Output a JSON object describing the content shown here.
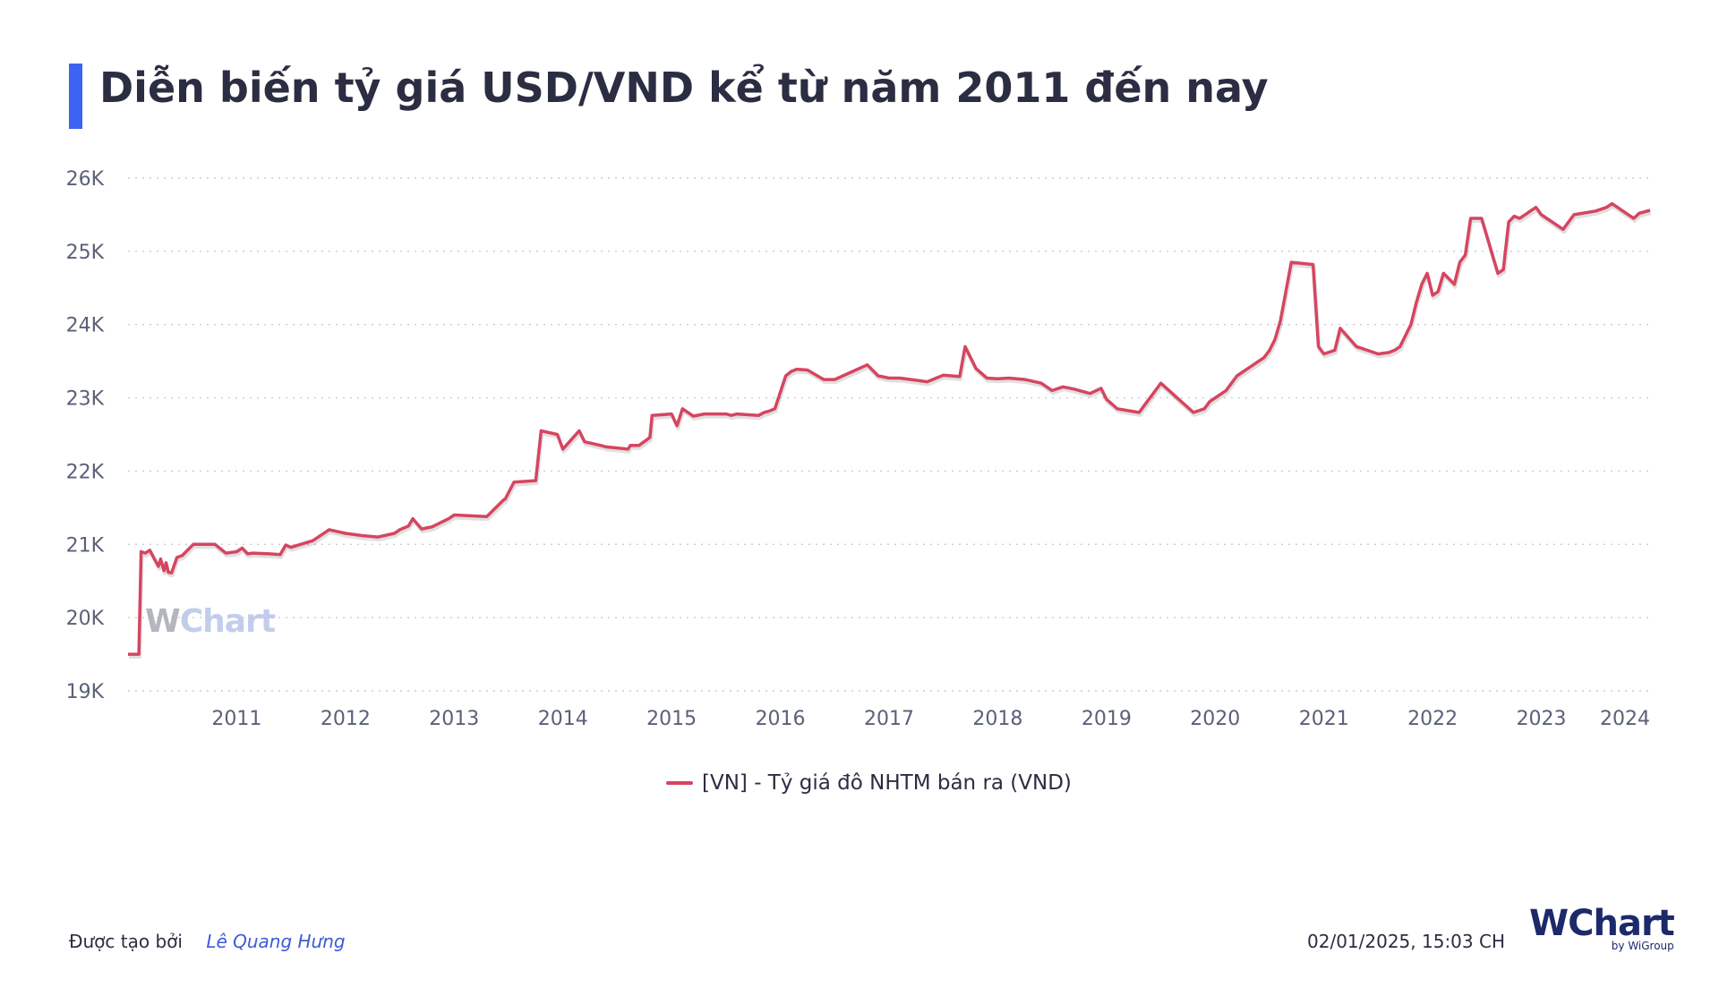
{
  "header": {
    "title": "Diễn biến tỷ giá USD/VND kể từ năm 2011 đến nay",
    "accent_color": "#3d63f2"
  },
  "chart_data": {
    "type": "line",
    "title": "Diễn biến tỷ giá USD/VND kể từ năm 2011 đến nay",
    "xlabel": "",
    "ylabel": "",
    "ylim": [
      19000,
      26000
    ],
    "xlim": [
      2010.0,
      2024.0
    ],
    "y_ticks": [
      "19K",
      "20K",
      "21K",
      "22K",
      "23K",
      "24K",
      "25K",
      "26K"
    ],
    "y_tick_values": [
      19000,
      20000,
      21000,
      22000,
      23000,
      24000,
      25000,
      26000
    ],
    "x_ticks": [
      "2011",
      "2012",
      "2013",
      "2014",
      "2015",
      "2016",
      "2017",
      "2018",
      "2019",
      "2020",
      "2021",
      "2022",
      "2023",
      "2024"
    ],
    "x_tick_values": [
      2011.0,
      2012.0,
      2013.0,
      2014.0,
      2015.0,
      2016.0,
      2017.0,
      2018.0,
      2019.0,
      2020.0,
      2021.0,
      2022.0,
      2023.0,
      2024.0
    ],
    "grid": true,
    "legend_position": "bottom",
    "series": [
      {
        "name": "[VN] - Tỷ giá đô NHTM bán ra (VND)",
        "color": "#d64560",
        "x": [
          2010.0,
          2010.1,
          2010.12,
          2010.16,
          2010.2,
          2010.28,
          2010.3,
          2010.33,
          2010.35,
          2010.37,
          2010.4,
          2010.45,
          2010.5,
          2010.6,
          2010.8,
          2010.9,
          2011.0,
          2011.05,
          2011.1,
          2011.15,
          2011.3,
          2011.4,
          2011.45,
          2011.5,
          2011.7,
          2011.85,
          2012.0,
          2012.1,
          2012.15,
          2012.3,
          2012.45,
          2012.5,
          2012.58,
          2012.62,
          2012.7,
          2012.8,
          2012.95,
          2013.0,
          2013.3,
          2013.45,
          2013.47,
          2013.55,
          2013.75,
          2013.8,
          2013.95,
          2014.0,
          2014.15,
          2014.2,
          2014.35,
          2014.4,
          2014.6,
          2014.62,
          2014.7,
          2014.8,
          2014.82,
          2015.0,
          2015.05,
          2015.1,
          2015.2,
          2015.3,
          2015.5,
          2015.55,
          2015.6,
          2015.8,
          2015.85,
          2015.9,
          2015.95,
          2016.05,
          2016.1,
          2016.15,
          2016.25,
          2016.4,
          2016.5,
          2016.8,
          2016.9,
          2017.0,
          2017.1,
          2017.2,
          2017.25,
          2017.35,
          2017.5,
          2017.65,
          2017.7,
          2017.8,
          2017.9,
          2018.0,
          2018.1,
          2018.25,
          2018.4,
          2018.5,
          2018.6,
          2018.7,
          2018.75,
          2018.85,
          2018.95,
          2019.0,
          2019.1,
          2019.3,
          2019.5,
          2019.8,
          2019.9,
          2019.95,
          2020.0,
          2020.1,
          2020.2,
          2020.4,
          2020.45,
          2020.5,
          2020.55,
          2020.6,
          2020.7,
          2020.9,
          2020.95,
          2021.0,
          2021.1,
          2021.15,
          2021.3,
          2021.5,
          2021.6,
          2021.65,
          2021.7,
          2021.75,
          2021.8,
          2021.85,
          2021.9,
          2021.95,
          2022.0,
          2022.05,
          2022.1,
          2022.2,
          2022.25,
          2022.3,
          2022.35,
          2022.4,
          2022.45,
          2022.5,
          2022.55,
          2022.6,
          2022.65,
          2022.7,
          2022.75,
          2022.8,
          2022.85,
          2022.9,
          2022.95,
          2023.0,
          2023.05,
          2023.1,
          2023.15,
          2023.2,
          2023.25,
          2023.3,
          2023.5,
          2023.6,
          2023.65,
          2023.7,
          2023.75,
          2023.8,
          2023.85,
          2023.9,
          2024.0
        ],
        "y": [
          19500,
          19500,
          20900,
          20880,
          20920,
          20700,
          20800,
          20640,
          20750,
          20620,
          20610,
          20820,
          20850,
          21000,
          21000,
          20880,
          20900,
          20950,
          20870,
          20880,
          20870,
          20860,
          20990,
          20960,
          21050,
          21200,
          21150,
          21130,
          21120,
          21100,
          21150,
          21200,
          21250,
          21350,
          21210,
          21240,
          21350,
          21400,
          21380,
          21600,
          21620,
          21850,
          21870,
          22550,
          22500,
          22300,
          22550,
          22400,
          22350,
          22330,
          22300,
          22350,
          22350,
          22460,
          22760,
          22780,
          22620,
          22850,
          22750,
          22780,
          22780,
          22760,
          22780,
          22760,
          22800,
          22820,
          22850,
          23300,
          23360,
          23390,
          23380,
          23250,
          23250,
          23450,
          23300,
          23270,
          23270,
          23250,
          23240,
          23220,
          23310,
          23290,
          23700,
          23400,
          23270,
          23260,
          23270,
          23250,
          23200,
          23100,
          23150,
          23120,
          23100,
          23060,
          23130,
          22980,
          22850,
          22800,
          23200,
          22800,
          22850,
          22950,
          23000,
          23100,
          23300,
          23500,
          23550,
          23650,
          23800,
          24050,
          24850,
          24820,
          23700,
          23600,
          23650,
          23950,
          23700,
          23600,
          23620,
          23650,
          23700,
          23850,
          24000,
          24300,
          24550,
          24700,
          24400,
          24450,
          24700,
          24550,
          24850,
          24950,
          25450,
          25450,
          25450,
          25200,
          24950,
          24700,
          24750,
          25400,
          25480,
          25450,
          25500,
          25550,
          25600,
          25500,
          25450,
          25400,
          25350,
          25300,
          25400,
          25500,
          25550,
          25600,
          25650,
          25600,
          25550,
          25500,
          25450,
          25520,
          25560
        ]
      }
    ]
  },
  "watermark": {
    "w": "W",
    "rest": "Chart"
  },
  "footer": {
    "created_by_label": "Được tạo bởi",
    "author": "Lê Quang Hưng",
    "timestamp": "02/01/2025, 15:03 CH"
  },
  "brand": {
    "w": "W",
    "rest": "Chart",
    "sub": "by WiGroup"
  }
}
